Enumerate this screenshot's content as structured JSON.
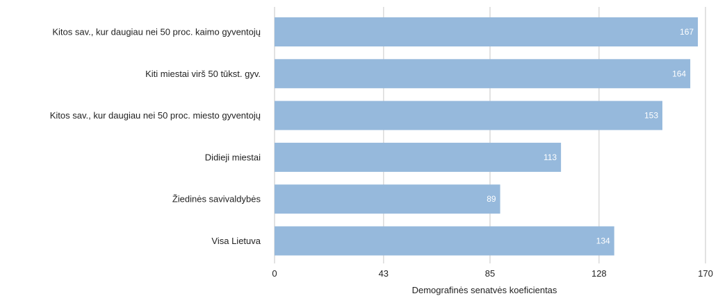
{
  "chart_data": {
    "type": "bar",
    "orientation": "horizontal",
    "categories": [
      "Kitos sav., kur daugiau nei 50 proc. kaimo gyventojų",
      "Kiti miestai virš 50 tūkst. gyv.",
      "Kitos sav., kur daugiau nei 50 proc. miesto gyventojų",
      "Didieji miestai",
      "Žiedinės savivaldybės",
      "Visa Lietuva"
    ],
    "values": [
      167,
      164,
      153,
      113,
      89,
      134
    ],
    "xlabel": "Demografinės senatvės koeficientas",
    "xlim": [
      0,
      170
    ],
    "xticks": [
      0,
      43,
      85,
      128,
      170
    ],
    "grid": "vertical",
    "bar_color": "#96b9dc",
    "label_color": "#ffffff"
  }
}
